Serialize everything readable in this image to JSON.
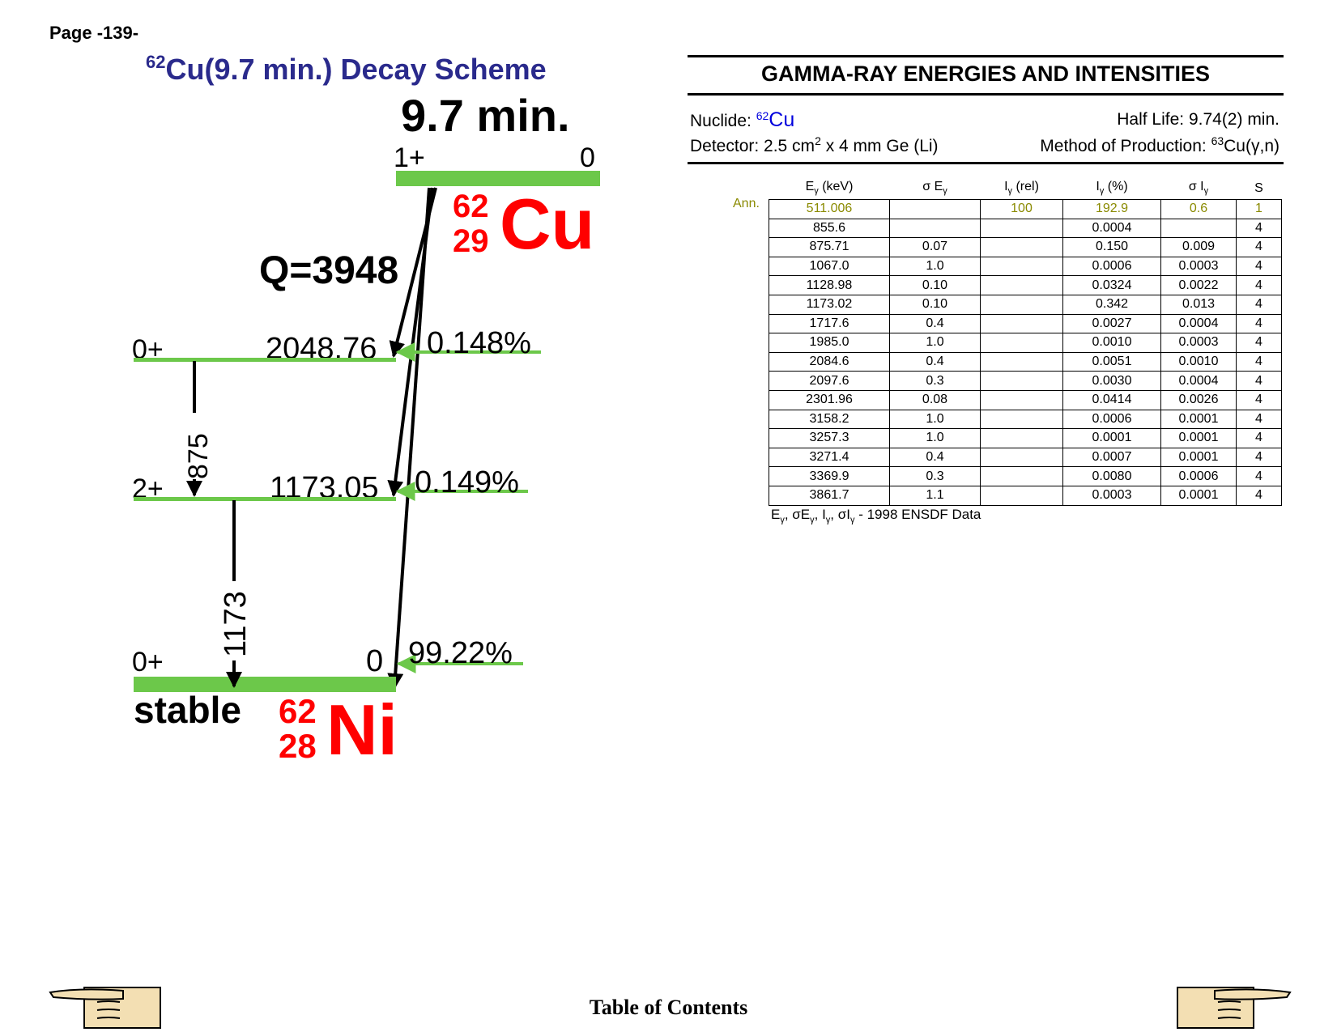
{
  "page_number": "Page -139-",
  "title": {
    "mass": "62",
    "text": "Cu(9.7 min.) Decay Scheme"
  },
  "decay_scheme": {
    "parent": {
      "halflife": "9.7 min.",
      "spin": "1+",
      "energy": "0",
      "mass": "62",
      "z": "29",
      "symbol": "Cu"
    },
    "q_value": "Q=3948",
    "levels": [
      {
        "spin": "0+",
        "energy": "2048.76",
        "branch": "0.148%"
      },
      {
        "spin": "2+",
        "energy": "1173.05",
        "branch": "0.149%"
      },
      {
        "spin": "0+",
        "energy": "0",
        "branch": "99.22%"
      }
    ],
    "gammas": [
      "875",
      "1173"
    ],
    "daughter": {
      "status": "stable",
      "mass": "62",
      "z": "28",
      "symbol": "Ni"
    },
    "level_color": "#6cc84a",
    "nuclide_color": "#ff0000"
  },
  "gamma_panel": {
    "heading": "GAMMA-RAY ENERGIES AND INTENSITIES",
    "nuclide_label": "Nuclide:",
    "nuclide_mass": "62",
    "nuclide_symbol": "Cu",
    "halflife": "Half Life: 9.74(2) min.",
    "detector_pre": "Detector: 2.5 cm",
    "detector_sup": "2",
    "detector_post": " x 4 mm Ge (Li)",
    "production_pre": "Method of Production: ",
    "production_sup": "63",
    "production_post": "Cu(γ,n)",
    "columns": {
      "e_main": "E",
      "e_sub": "γ",
      "e_unit": " (keV)",
      "se_main": "σ E",
      "se_sub": "γ",
      "irel_main": "I",
      "irel_sub": "γ",
      "irel_unit": " (rel)",
      "ipct_main": "I",
      "ipct_sub": "γ",
      "ipct_unit": " (%)",
      "si_main": "σ I",
      "si_sub": "γ",
      "s": "S"
    },
    "ann_label": "Ann.",
    "rows": [
      [
        "511.006",
        "",
        "100",
        "192.9",
        "0.6",
        "1"
      ],
      [
        "855.6",
        "",
        "",
        "0.0004",
        "",
        "4"
      ],
      [
        "875.71",
        "0.07",
        "",
        "0.150",
        "0.009",
        "4"
      ],
      [
        "1067.0",
        "1.0",
        "",
        "0.0006",
        "0.0003",
        "4"
      ],
      [
        "1128.98",
        "0.10",
        "",
        "0.0324",
        "0.0022",
        "4"
      ],
      [
        "1173.02",
        "0.10",
        "",
        "0.342",
        "0.013",
        "4"
      ],
      [
        "1717.6",
        "0.4",
        "",
        "0.0027",
        "0.0004",
        "4"
      ],
      [
        "1985.0",
        "1.0",
        "",
        "0.0010",
        "0.0003",
        "4"
      ],
      [
        "2084.6",
        "0.4",
        "",
        "0.0051",
        "0.0010",
        "4"
      ],
      [
        "2097.6",
        "0.3",
        "",
        "0.0030",
        "0.0004",
        "4"
      ],
      [
        "2301.96",
        "0.08",
        "",
        "0.0414",
        "0.0026",
        "4"
      ],
      [
        "3158.2",
        "1.0",
        "",
        "0.0006",
        "0.0001",
        "4"
      ],
      [
        "3257.3",
        "1.0",
        "",
        "0.0001",
        "0.0001",
        "4"
      ],
      [
        "3271.4",
        "0.4",
        "",
        "0.0007",
        "0.0001",
        "4"
      ],
      [
        "3369.9",
        "0.3",
        "",
        "0.0080",
        "0.0006",
        "4"
      ],
      [
        "3861.7",
        "1.1",
        "",
        "0.0003",
        "0.0001",
        "4"
      ]
    ],
    "footnote_source": " - 1998 ENSDF Data"
  },
  "nav": {
    "toc": "Table of Contents"
  }
}
